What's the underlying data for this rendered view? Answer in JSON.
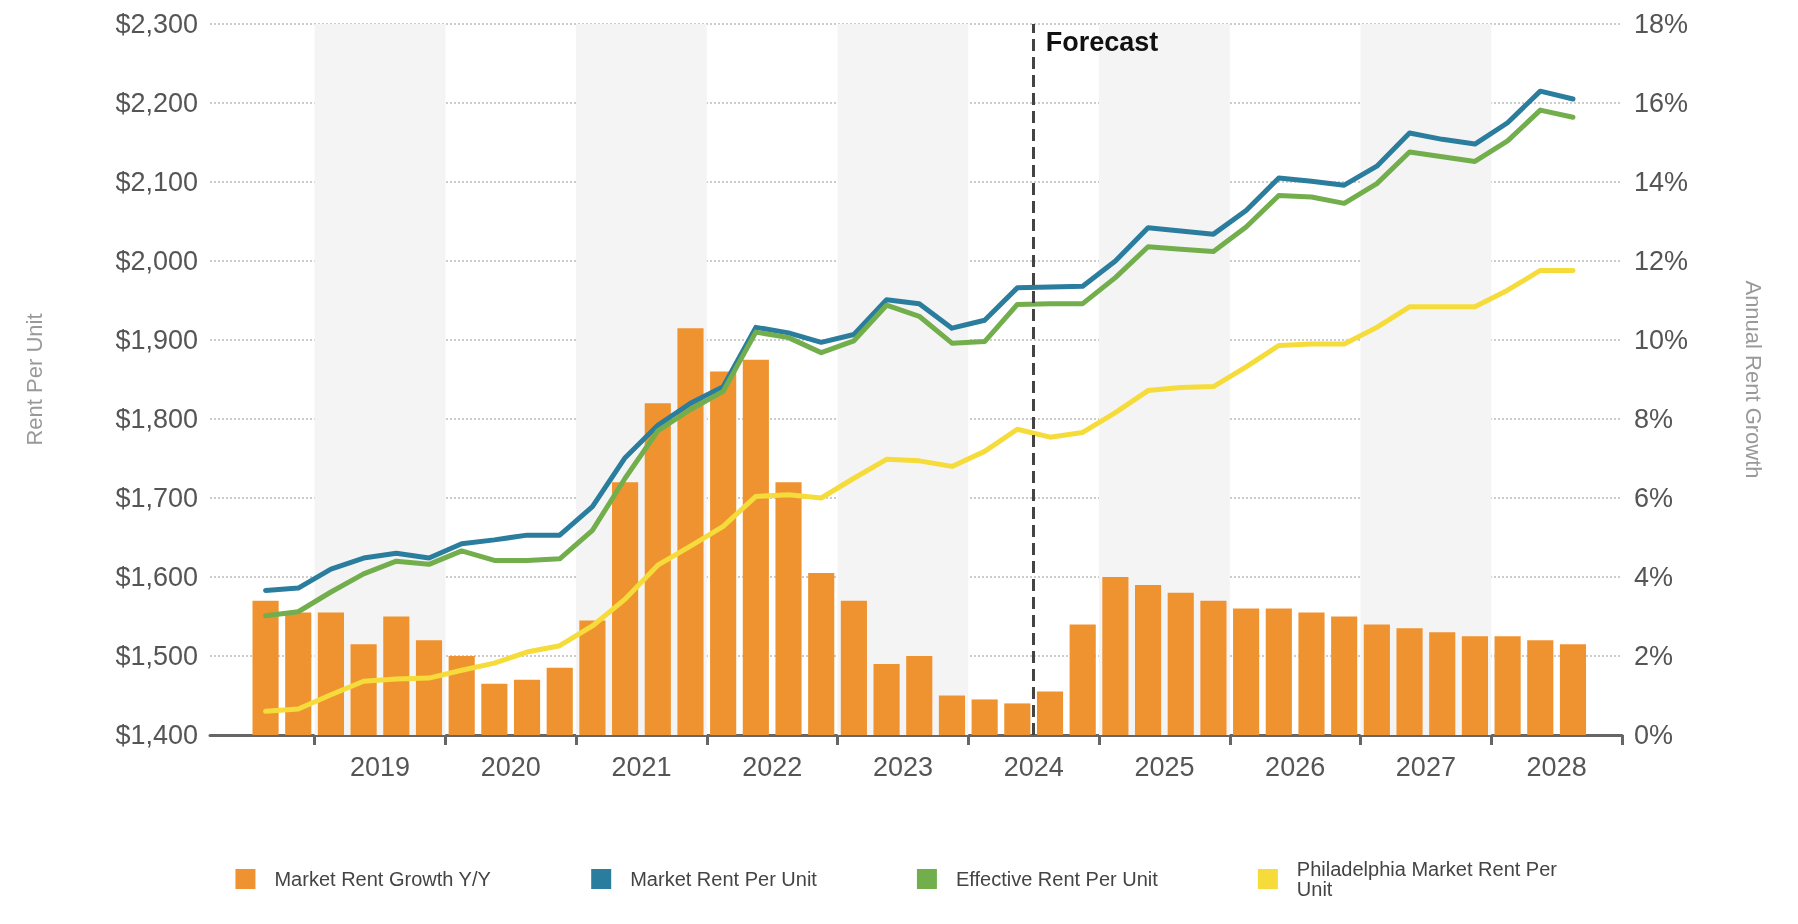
{
  "chart_data": {
    "type": "bar",
    "ylabel": "Rent Per Unit",
    "y2label": "Annual Rent Growth",
    "x": [
      2018.625,
      2018.875,
      2019.125,
      2019.375,
      2019.625,
      2019.875,
      2020.125,
      2020.375,
      2020.625,
      2020.875,
      2021.125,
      2021.375,
      2021.625,
      2021.875,
      2022.125,
      2022.375,
      2022.625,
      2022.875,
      2023.125,
      2023.375,
      2023.625,
      2023.875,
      2024.125,
      2024.375,
      2024.625,
      2024.875,
      2025.125,
      2025.375,
      2025.625,
      2025.875,
      2026.125,
      2026.375,
      2026.625,
      2026.875,
      2027.125,
      2027.375,
      2027.625,
      2027.875,
      2028.125,
      2028.375,
      2028.625
    ],
    "xlim": [
      2018.2,
      2029
    ],
    "xticks": [
      {
        "value": 2019,
        "label": null
      },
      {
        "value": 2019.5,
        "label": "2019"
      },
      {
        "value": 2020,
        "label": null
      },
      {
        "value": 2020.5,
        "label": "2020"
      },
      {
        "value": 2021,
        "label": null
      },
      {
        "value": 2021.5,
        "label": "2021"
      },
      {
        "value": 2022,
        "label": null
      },
      {
        "value": 2022.5,
        "label": "2022"
      },
      {
        "value": 2023,
        "label": null
      },
      {
        "value": 2023.5,
        "label": "2023"
      },
      {
        "value": 2024,
        "label": null
      },
      {
        "value": 2024.5,
        "label": "2024"
      },
      {
        "value": 2025,
        "label": null
      },
      {
        "value": 2025.5,
        "label": "2025"
      },
      {
        "value": 2026,
        "label": null
      },
      {
        "value": 2026.5,
        "label": "2026"
      },
      {
        "value": 2027,
        "label": null
      },
      {
        "value": 2027.5,
        "label": "2027"
      },
      {
        "value": 2028,
        "label": null
      },
      {
        "value": 2028.5,
        "label": "2028"
      },
      {
        "value": 2029,
        "label": null
      }
    ],
    "ylim": [
      1400,
      2300
    ],
    "yticks": [
      {
        "value": 1400,
        "label": "$1,400"
      },
      {
        "value": 1500,
        "label": "$1,500"
      },
      {
        "value": 1600,
        "label": "$1,600"
      },
      {
        "value": 1700,
        "label": "$1,700"
      },
      {
        "value": 1800,
        "label": "$1,800"
      },
      {
        "value": 1900,
        "label": "$1,900"
      },
      {
        "value": 2000,
        "label": "$2,000"
      },
      {
        "value": 2100,
        "label": "$2,100"
      },
      {
        "value": 2200,
        "label": "$2,200"
      },
      {
        "value": 2300,
        "label": "$2,300"
      }
    ],
    "y2lim": [
      0,
      18
    ],
    "y2ticks": [
      {
        "value": 0,
        "label": "0%"
      },
      {
        "value": 2,
        "label": "2%"
      },
      {
        "value": 4,
        "label": "4%"
      },
      {
        "value": 6,
        "label": "6%"
      },
      {
        "value": 8,
        "label": "8%"
      },
      {
        "value": 10,
        "label": "10%"
      },
      {
        "value": 12,
        "label": "12%"
      },
      {
        "value": 14,
        "label": "14%"
      },
      {
        "value": 16,
        "label": "16%"
      },
      {
        "value": 18,
        "label": "18%"
      }
    ],
    "series": [
      {
        "name": "Market Rent Growth Y/Y",
        "axis": "y2",
        "color": "#ef9331",
        "values": [
          3.4,
          3.1,
          3.1,
          2.3,
          3.0,
          2.4,
          2.0,
          1.3,
          1.4,
          1.7,
          2.9,
          6.4,
          8.4,
          10.3,
          9.2,
          9.5,
          6.4,
          4.1,
          3.4,
          1.8,
          2.0,
          1.0,
          0.9,
          0.8,
          1.1,
          2.8,
          4.0,
          3.8,
          3.6,
          3.4,
          3.2,
          3.2,
          3.1,
          3.0,
          2.8,
          2.7,
          2.6,
          2.5,
          2.5,
          2.4,
          2.3
        ]
      },
      {
        "name": "Market Rent Per Unit",
        "type": "line",
        "color": "#2b7d9e",
        "values": [
          1583,
          1586,
          1610,
          1624,
          1630,
          1624,
          1642,
          1647,
          1653,
          1653,
          1689,
          1751,
          1792,
          1820,
          1841,
          1916,
          1909,
          1897,
          1907,
          1951,
          1946,
          1915,
          1925,
          1966,
          1967,
          1968,
          2000,
          2042,
          2038,
          2034,
          2064,
          2105,
          2101,
          2096,
          2120,
          2162,
          2154,
          2148,
          2175,
          2215,
          2205
        ]
      },
      {
        "name": "Effective Rent Per Unit",
        "type": "line",
        "color": "#73ae4c",
        "values": [
          1551,
          1556,
          1581,
          1604,
          1620,
          1616,
          1633,
          1621,
          1621,
          1623,
          1659,
          1725,
          1785,
          1812,
          1835,
          1910,
          1903,
          1884,
          1899,
          1944,
          1930,
          1896,
          1898,
          1945,
          1946,
          1946,
          1979,
          2018,
          2015,
          2012,
          2043,
          2083,
          2081,
          2073,
          2098,
          2138,
          2132,
          2126,
          2152,
          2191,
          2182
        ]
      },
      {
        "name": "Philadelphia Market Rent Per Unit",
        "type": "line",
        "color": "#f5dc3a",
        "values": [
          1430,
          1433,
          1451,
          1468,
          1471,
          1472,
          1482,
          1491,
          1505,
          1513,
          1538,
          1572,
          1615,
          1639,
          1664,
          1702,
          1704,
          1700,
          1725,
          1749,
          1747,
          1740,
          1759,
          1787,
          1777,
          1783,
          1808,
          1836,
          1840,
          1841,
          1866,
          1893,
          1895,
          1895,
          1916,
          1942,
          1942,
          1942,
          1963,
          1988,
          1988
        ]
      }
    ],
    "ref_lines": [
      {
        "axis": "x",
        "value": 2024.5,
        "label": "Forecast",
        "color": "#444444",
        "line_style": "dashed"
      }
    ],
    "bands": [
      {
        "axis": "x",
        "from": 2019,
        "to": 2020,
        "color": "#f4f4f4"
      },
      {
        "axis": "x",
        "from": 2021,
        "to": 2022,
        "color": "#f4f4f4"
      },
      {
        "axis": "x",
        "from": 2023,
        "to": 2024,
        "color": "#f4f4f4"
      },
      {
        "axis": "x",
        "from": 2025,
        "to": 2026,
        "color": "#f4f4f4"
      },
      {
        "axis": "x",
        "from": 2027,
        "to": 2028,
        "color": "#f4f4f4"
      }
    ],
    "grid": "y",
    "legend": "bottom",
    "marker": "none",
    "line_style": "solid"
  }
}
